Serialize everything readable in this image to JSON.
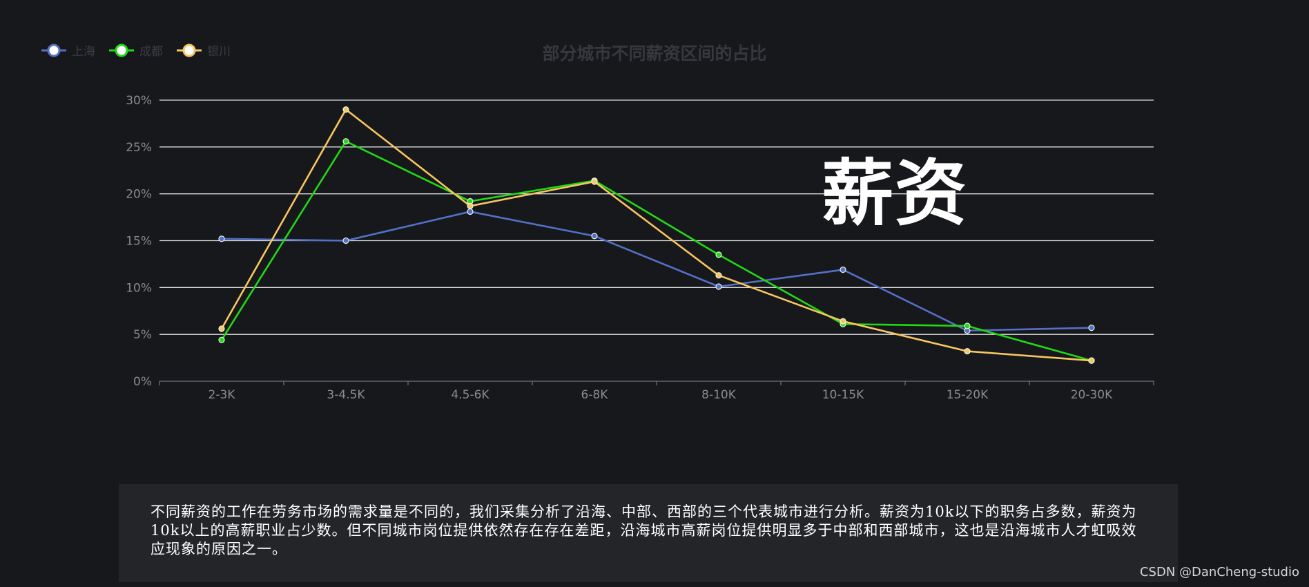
{
  "chart_data": {
    "type": "line",
    "title": "部分城市不同薪资区间的占比",
    "categories": [
      "2-3K",
      "3-4.5K",
      "4.5-6K",
      "6-8K",
      "8-10K",
      "10-15K",
      "15-20K",
      "20-30K"
    ],
    "y_ticks": [
      "0%",
      "5%",
      "10%",
      "15%",
      "20%",
      "25%",
      "30%"
    ],
    "ylim": [
      0,
      30
    ],
    "grid": true,
    "legend_position": "top-left",
    "series": [
      {
        "name": "上海",
        "color": "#5470c6",
        "values": [
          15.2,
          15.0,
          18.1,
          15.5,
          10.1,
          11.9,
          5.4,
          5.7
        ]
      },
      {
        "name": "成都",
        "color": "#22d915",
        "values": [
          4.4,
          25.6,
          19.2,
          21.4,
          13.5,
          6.1,
          5.9,
          2.2
        ]
      },
      {
        "name": "银川",
        "color": "#f8c660",
        "values": [
          5.6,
          29.0,
          18.7,
          21.3,
          11.3,
          6.4,
          3.2,
          2.2
        ]
      }
    ]
  },
  "overlay_word": "薪资",
  "description": "不同薪资的工作在劳务市场的需求量是不同的，我们采集分析了沿海、中部、西部的三个代表城市进行分析。薪资为10k以下的职务占多数，薪资为10k以上的高薪职业占少数。但不同城市岗位提供依然存在存在差距，沿海城市高薪岗位提供明显多于中部和西部城市，这也是沿海城市人才虹吸效应现象的原因之一。",
  "watermark": "CSDN @DanCheng-studio"
}
